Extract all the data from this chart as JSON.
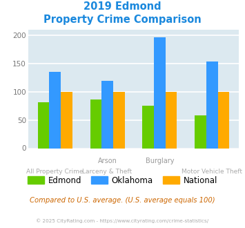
{
  "title_line1": "2019 Edmond",
  "title_line2": "Property Crime Comparison",
  "groups": [
    "Edmond",
    "Oklahoma",
    "National"
  ],
  "values": {
    "Edmond": [
      81,
      86,
      75,
      58
    ],
    "Oklahoma": [
      135,
      119,
      197,
      153
    ],
    "National": [
      100,
      100,
      100,
      100
    ]
  },
  "colors": {
    "Edmond": "#66cc00",
    "Oklahoma": "#3399ff",
    "National": "#ffaa00"
  },
  "ylim": [
    0,
    210
  ],
  "yticks": [
    0,
    50,
    100,
    150,
    200
  ],
  "plot_bg": "#dce9f0",
  "grid_color": "#ffffff",
  "title_color": "#1a88dd",
  "note_text": "Compared to U.S. average. (U.S. average equals 100)",
  "note_color": "#cc6600",
  "footer_text": "© 2025 CityRating.com - https://www.cityrating.com/crime-statistics/",
  "footer_color": "#aaaaaa",
  "bar_width": 0.22,
  "top_labels": [
    {
      "x": 1,
      "text": "Arson"
    },
    {
      "x": 2,
      "text": "Burglary"
    }
  ],
  "bottom_labels": [
    {
      "x": 0,
      "text": "All Property Crime"
    },
    {
      "x": 1,
      "text": "Larceny & Theft"
    },
    {
      "x": 3,
      "text": "Motor Vehicle Theft"
    }
  ]
}
